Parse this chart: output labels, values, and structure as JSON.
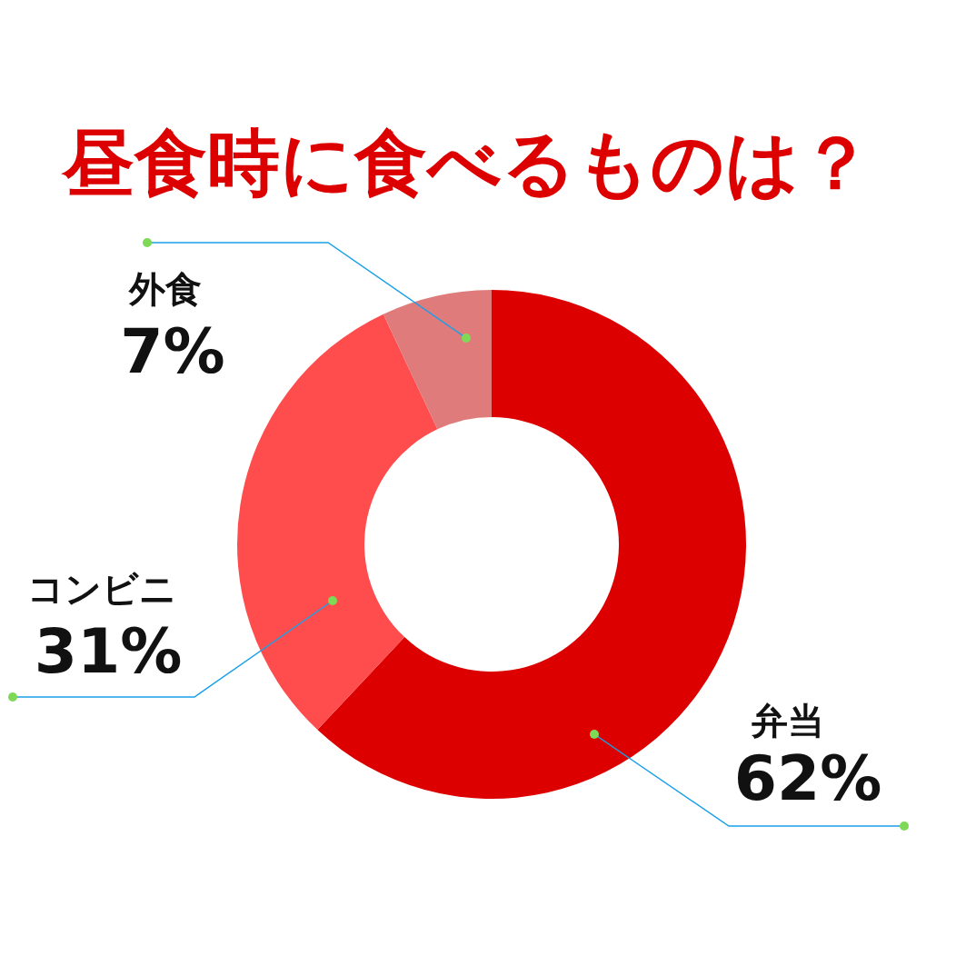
{
  "chart_data": {
    "type": "donut",
    "title": "昼食時に食べるものは？",
    "categories": [
      "弁当",
      "コンビニ",
      "外食"
    ],
    "values": [
      62,
      31,
      7
    ],
    "value_labels": [
      "62%",
      "31%",
      "7%"
    ],
    "colors": [
      "#dd0000",
      "#ff4d4d",
      "#e07b7b"
    ],
    "legend": false
  }
}
